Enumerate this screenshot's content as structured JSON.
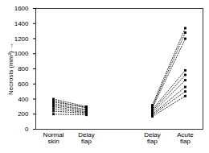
{
  "chart_data": {
    "type": "line",
    "y_label": "Necrosis (mm²)",
    "categories": [
      "Normal skin",
      "Delay flap",
      null,
      "Delay flap",
      "Acute flap"
    ],
    "ylim": [
      0,
      1600
    ],
    "yticks": [
      0,
      200,
      400,
      600,
      800,
      1000,
      1200,
      1400,
      1600
    ],
    "color": "#000000",
    "marker": "square",
    "line_style": "dotted",
    "series": [
      {
        "values": [
          400,
          300,
          null,
          null,
          null
        ]
      },
      {
        "values": [
          380,
          280,
          null,
          null,
          null
        ]
      },
      {
        "values": [
          360,
          290,
          null,
          null,
          null
        ]
      },
      {
        "values": [
          340,
          260,
          null,
          null,
          null
        ]
      },
      {
        "values": [
          320,
          250,
          null,
          null,
          null
        ]
      },
      {
        "values": [
          300,
          230,
          null,
          null,
          null
        ]
      },
      {
        "values": [
          270,
          220,
          null,
          null,
          null
        ]
      },
      {
        "values": [
          240,
          210,
          null,
          null,
          null
        ]
      },
      {
        "values": [
          200,
          190,
          null,
          null,
          null
        ]
      },
      {
        "values": [
          null,
          null,
          null,
          320,
          1340
        ]
      },
      {
        "values": [
          null,
          null,
          null,
          300,
          1280
        ]
      },
      {
        "values": [
          null,
          null,
          null,
          280,
          1200
        ]
      },
      {
        "values": [
          null,
          null,
          null,
          260,
          780
        ]
      },
      {
        "values": [
          null,
          null,
          null,
          240,
          720
        ]
      },
      {
        "values": [
          null,
          null,
          null,
          220,
          650
        ]
      },
      {
        "values": [
          null,
          null,
          null,
          200,
          560
        ]
      },
      {
        "values": [
          null,
          null,
          null,
          190,
          500
        ]
      },
      {
        "values": [
          null,
          null,
          null,
          170,
          440
        ]
      }
    ]
  }
}
